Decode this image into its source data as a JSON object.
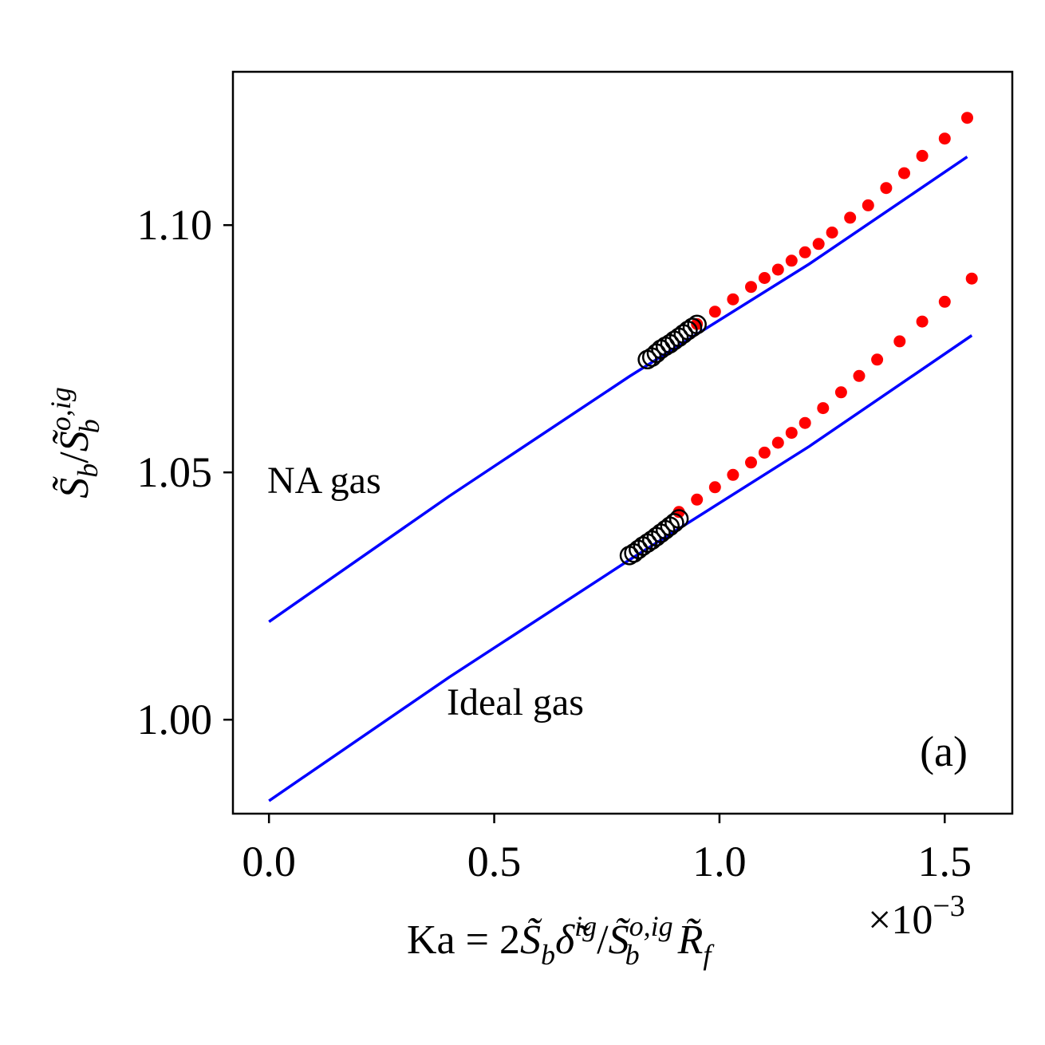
{
  "chart_data": {
    "type": "line",
    "xlabel": "Ka = 2S̃_bδ̃^{ig}/S̃_b^{o,ig}R̃_f",
    "xlabel_parts": {
      "main": "Ka = 2",
      "s": "S̃",
      "b_sub": "b",
      "delta": "δ̃",
      "ig_sup": "ig",
      "slash": "/",
      "oig_sup": "o,ig",
      "r": "R̃",
      "f_sub": "f"
    },
    "x_multiplier": {
      "base": "×10",
      "exp": "−3"
    },
    "ylabel": "S̃_b/S̃_b^{o,ig}",
    "ylabel_parts": {
      "s1": "S̃",
      "b1": "b",
      "slash": "/",
      "s2": "S̃",
      "b2": "b",
      "oig": "o,ig"
    },
    "xlim": [
      -0.08,
      1.65
    ],
    "ylim": [
      0.981,
      1.131
    ],
    "x_ticks": [
      0.0,
      0.5,
      1.0,
      1.5
    ],
    "x_tick_labels": [
      "0.0",
      "0.5",
      "1.0",
      "1.5"
    ],
    "y_ticks": [
      1.0,
      1.05,
      1.1
    ],
    "y_tick_labels": [
      "1.00",
      "1.05",
      "1.10"
    ],
    "grid": false,
    "panel_label": "(a)",
    "series": [
      {
        "label": "NA gas",
        "color": "#0000ff",
        "x": [
          0.0,
          0.4,
          0.8,
          1.2,
          1.55
        ],
        "y": [
          1.0198,
          1.0452,
          1.0694,
          1.0922,
          1.1138
        ]
      },
      {
        "label": "Ideal gas",
        "color": "#0000ff",
        "x": [
          0.0,
          0.4,
          0.8,
          1.2,
          1.56
        ],
        "y": [
          0.9836,
          1.0086,
          1.0323,
          1.0553,
          1.0777
        ]
      }
    ],
    "markers": [
      {
        "group": "NA gas",
        "color": "#ff0000",
        "style": "filled-dot",
        "x": [
          0.95,
          0.99,
          1.03,
          1.07,
          1.1,
          1.13,
          1.16,
          1.19,
          1.22,
          1.25,
          1.29,
          1.33,
          1.37,
          1.41,
          1.45,
          1.5,
          1.55
        ],
        "y": [
          1.08,
          1.0825,
          1.085,
          1.0875,
          1.0893,
          1.091,
          1.0928,
          1.0945,
          1.0962,
          1.0985,
          1.1015,
          1.104,
          1.1075,
          1.1105,
          1.114,
          1.1175,
          1.1217
        ]
      },
      {
        "group": "Ideal gas",
        "color": "#ff0000",
        "style": "filled-dot",
        "x": [
          0.91,
          0.95,
          0.99,
          1.03,
          1.07,
          1.1,
          1.13,
          1.16,
          1.19,
          1.23,
          1.27,
          1.31,
          1.35,
          1.4,
          1.45,
          1.5,
          1.56
        ],
        "y": [
          1.042,
          1.0445,
          1.047,
          1.0495,
          1.052,
          1.054,
          1.056,
          1.058,
          1.06,
          1.063,
          1.0662,
          1.0695,
          1.0728,
          1.0765,
          1.0805,
          1.0845,
          1.0892
        ]
      },
      {
        "group": "NA gas",
        "color": "#000000",
        "style": "open-circle",
        "x": [
          0.84,
          0.85,
          0.86,
          0.87,
          0.88,
          0.89,
          0.9,
          0.91,
          0.92,
          0.93,
          0.94,
          0.95
        ],
        "y": [
          1.0728,
          1.0733,
          1.0741,
          1.0749,
          1.0755,
          1.076,
          1.0767,
          1.0773,
          1.078,
          1.0787,
          1.0793,
          1.0799
        ]
      },
      {
        "group": "Ideal gas",
        "color": "#000000",
        "style": "open-circle",
        "x": [
          0.8,
          0.81,
          0.82,
          0.83,
          0.84,
          0.85,
          0.86,
          0.87,
          0.88,
          0.89,
          0.9,
          0.91
        ],
        "y": [
          1.0332,
          1.0337,
          1.0344,
          1.0351,
          1.0357,
          1.0363,
          1.037,
          1.0377,
          1.0384,
          1.0391,
          1.0398,
          1.0406
        ]
      }
    ]
  }
}
